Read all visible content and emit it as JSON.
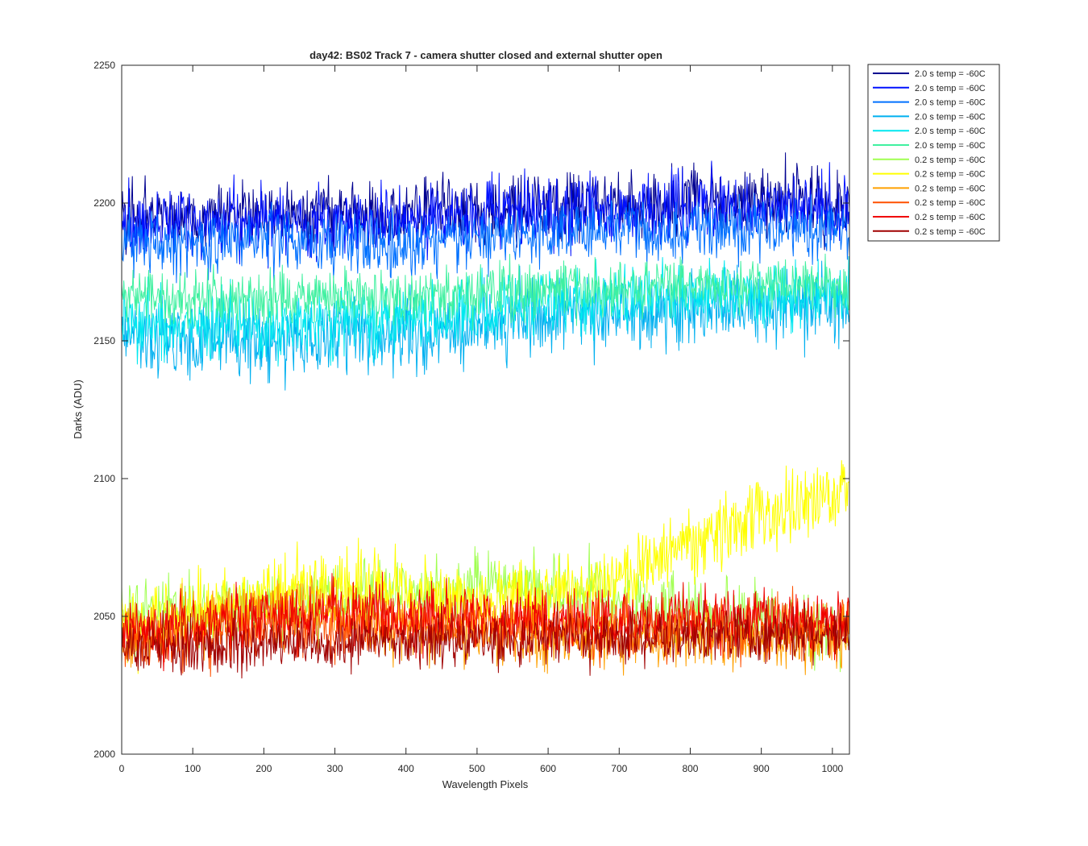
{
  "chart_data": {
    "type": "line",
    "title": "day42: BS02  Track 7 - camera shutter closed and external shutter open",
    "xlabel": "Wavelength Pixels",
    "ylabel": "Darks (ADU)",
    "xlim": [
      0,
      1024
    ],
    "ylim": [
      2000,
      2250
    ],
    "xticks": [
      "0",
      "100",
      "200",
      "300",
      "400",
      "500",
      "600",
      "700",
      "800",
      "900",
      "1000"
    ],
    "yticks": [
      "2000",
      "2050",
      "2100",
      "2150",
      "2200",
      "2250"
    ],
    "grid": false,
    "legend_position": "outside top-right",
    "x": [
      0,
      32,
      64,
      96,
      128,
      160,
      192,
      224,
      256,
      288,
      320,
      352,
      384,
      416,
      448,
      480,
      512,
      544,
      576,
      608,
      640,
      672,
      704,
      736,
      768,
      800,
      832,
      864,
      896,
      928,
      960,
      992,
      1024
    ],
    "series": [
      {
        "name": "2.0 s temp = -60C",
        "color": "#000090",
        "mean": [
          2196,
          2195,
          2196,
          2195,
          2196,
          2195,
          2197,
          2196,
          2195,
          2196,
          2197,
          2196,
          2195,
          2196,
          2197,
          2198,
          2198,
          2199,
          2199,
          2198,
          2199,
          2200,
          2200,
          2199,
          2200,
          2201,
          2201,
          2201,
          2200,
          2201,
          2201,
          2200,
          2200
        ],
        "spread": 10
      },
      {
        "name": "2.0 s temp = -60C",
        "color": "#0010FF",
        "mean": [
          2193,
          2192,
          2193,
          2192,
          2193,
          2193,
          2194,
          2193,
          2192,
          2193,
          2194,
          2193,
          2192,
          2193,
          2194,
          2195,
          2195,
          2196,
          2196,
          2195,
          2196,
          2197,
          2197,
          2196,
          2197,
          2198,
          2198,
          2198,
          2197,
          2198,
          2198,
          2197,
          2197
        ],
        "spread": 10
      },
      {
        "name": "2.0 s temp = -60C",
        "color": "#0070FF",
        "mean": [
          2186,
          2185,
          2186,
          2185,
          2186,
          2186,
          2187,
          2186,
          2185,
          2186,
          2187,
          2186,
          2185,
          2186,
          2187,
          2188,
          2188,
          2189,
          2189,
          2188,
          2189,
          2190,
          2190,
          2189,
          2190,
          2191,
          2191,
          2191,
          2190,
          2191,
          2191,
          2190,
          2190
        ],
        "spread": 9
      },
      {
        "name": "2.0 s temp = -60C",
        "color": "#00B0F0",
        "mean": [
          2152,
          2151,
          2151,
          2150,
          2150,
          2150,
          2150,
          2150,
          2150,
          2151,
          2152,
          2152,
          2152,
          2153,
          2154,
          2155,
          2156,
          2157,
          2158,
          2159,
          2160,
          2160,
          2161,
          2161,
          2162,
          2162,
          2162,
          2162,
          2162,
          2162,
          2162,
          2163,
          2163
        ],
        "spread": 11
      },
      {
        "name": "2.0 s temp = -60C",
        "color": "#00E8F0",
        "mean": [
          2157,
          2156,
          2156,
          2155,
          2155,
          2155,
          2155,
          2155,
          2155,
          2156,
          2157,
          2157,
          2157,
          2158,
          2159,
          2160,
          2161,
          2162,
          2163,
          2164,
          2165,
          2165,
          2166,
          2166,
          2167,
          2167,
          2167,
          2167,
          2167,
          2167,
          2167,
          2168,
          2168
        ],
        "spread": 10
      },
      {
        "name": "2.0 s temp = -60C",
        "color": "#40F0A0",
        "mean": [
          2166,
          2166,
          2165,
          2165,
          2165,
          2165,
          2165,
          2165,
          2165,
          2166,
          2166,
          2166,
          2166,
          2166,
          2167,
          2167,
          2167,
          2168,
          2168,
          2168,
          2169,
          2169,
          2169,
          2169,
          2170,
          2170,
          2170,
          2170,
          2170,
          2170,
          2170,
          2170,
          2170
        ],
        "spread": 8
      },
      {
        "name": "0.2 s temp = -60C",
        "color": "#A0FF50",
        "mean": [
          2048,
          2049,
          2050,
          2051,
          2052,
          2052,
          2053,
          2054,
          2055,
          2056,
          2057,
          2058,
          2058,
          2058,
          2059,
          2059,
          2060,
          2060,
          2060,
          2059,
          2058,
          2057,
          2055,
          2053,
          2052,
          2051,
          2050,
          2049,
          2048,
          2048,
          2047,
          2047,
          2047
        ],
        "spread": 10
      },
      {
        "name": "0.2 s temp = -60C",
        "color": "#FFFF00",
        "mean": [
          2046,
          2048,
          2049,
          2050,
          2052,
          2054,
          2056,
          2058,
          2060,
          2061,
          2061,
          2060,
          2059,
          2058,
          2057,
          2056,
          2055,
          2055,
          2056,
          2058,
          2060,
          2062,
          2065,
          2068,
          2072,
          2076,
          2080,
          2084,
          2087,
          2089,
          2090,
          2092,
          2094
        ],
        "spread": 11
      },
      {
        "name": "0.2 s temp = -60C",
        "color": "#FFA000",
        "mean": [
          2042,
          2043,
          2045,
          2047,
          2049,
          2051,
          2053,
          2054,
          2054,
          2052,
          2050,
          2048,
          2046,
          2045,
          2044,
          2044,
          2043,
          2043,
          2043,
          2042,
          2042,
          2042,
          2042,
          2042,
          2042,
          2042,
          2042,
          2042,
          2042,
          2042,
          2042,
          2042,
          2042
        ],
        "spread": 9
      },
      {
        "name": "0.2 s temp = -60C",
        "color": "#FF5000",
        "mean": [
          2040,
          2041,
          2042,
          2043,
          2044,
          2045,
          2046,
          2047,
          2047,
          2047,
          2047,
          2047,
          2047,
          2047,
          2047,
          2047,
          2047,
          2047,
          2047,
          2047,
          2046,
          2046,
          2046,
          2046,
          2046,
          2046,
          2046,
          2046,
          2046,
          2046,
          2046,
          2046,
          2046
        ],
        "spread": 9
      },
      {
        "name": "0.2 s temp = -60C",
        "color": "#F00000",
        "mean": [
          2044,
          2045,
          2046,
          2047,
          2048,
          2049,
          2049,
          2050,
          2050,
          2050,
          2050,
          2050,
          2050,
          2050,
          2050,
          2050,
          2050,
          2049,
          2049,
          2049,
          2049,
          2049,
          2049,
          2049,
          2049,
          2049,
          2049,
          2049,
          2049,
          2049,
          2049,
          2049,
          2049
        ],
        "spread": 9
      },
      {
        "name": "0.2 s temp = -60C",
        "color": "#A00000",
        "mean": [
          2040,
          2040,
          2040,
          2040,
          2040,
          2041,
          2041,
          2041,
          2041,
          2041,
          2041,
          2041,
          2041,
          2041,
          2042,
          2042,
          2042,
          2042,
          2042,
          2042,
          2042,
          2042,
          2042,
          2042,
          2042,
          2042,
          2043,
          2043,
          2043,
          2043,
          2043,
          2043,
          2043
        ],
        "spread": 8
      }
    ]
  }
}
